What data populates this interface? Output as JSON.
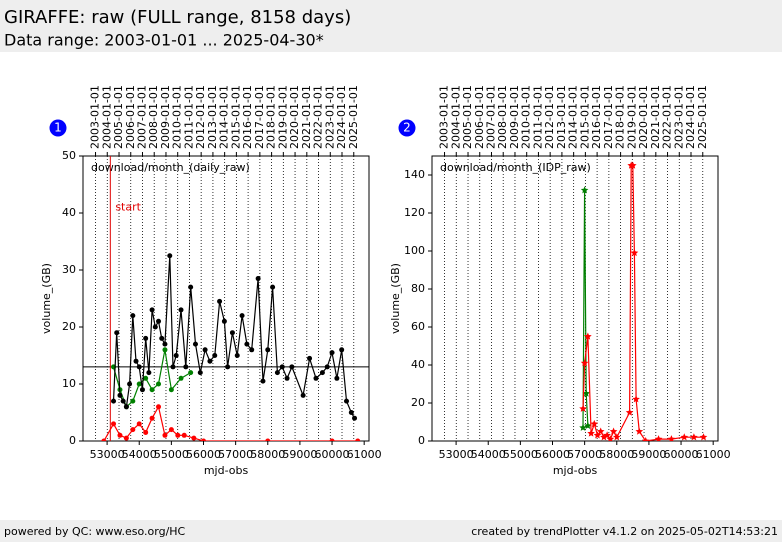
{
  "header": {
    "title": "GIRAFFE: raw (FULL range, 8158 days)",
    "subtitle": "Data range: 2003-01-01 ... 2025-04-30*"
  },
  "footer": {
    "left": "powered by QC: www.eso.org/HC",
    "right": "created by trendPlotter v4.1.2 on 2025-05-02T14:53:21"
  },
  "chart_data": [
    {
      "type": "line",
      "panel_label": "1",
      "title": "download/month_(daily_raw)",
      "xlabel": "mjd-obs",
      "ylabel": "volume_(GB)",
      "xlim": [
        52250,
        61150
      ],
      "ylim": [
        0,
        50
      ],
      "xticks": [
        53000,
        54000,
        55000,
        56000,
        57000,
        58000,
        59000,
        60000,
        61000
      ],
      "yticks": [
        0,
        10,
        20,
        30,
        40,
        50
      ],
      "x2ticks": [
        {
          "value": 52640,
          "label": "2003-01-01"
        },
        {
          "value": 53005,
          "label": "2004-01-01"
        },
        {
          "value": 53371,
          "label": "2005-01-01"
        },
        {
          "value": 53736,
          "label": "2006-01-01"
        },
        {
          "value": 54101,
          "label": "2007-01-01"
        },
        {
          "value": 54466,
          "label": "2008-01-01"
        },
        {
          "value": 54832,
          "label": "2009-01-01"
        },
        {
          "value": 55197,
          "label": "2010-01-01"
        },
        {
          "value": 55562,
          "label": "2011-01-01"
        },
        {
          "value": 55927,
          "label": "2012-01-01"
        },
        {
          "value": 56293,
          "label": "2013-01-01"
        },
        {
          "value": 56658,
          "label": "2014-01-01"
        },
        {
          "value": 57023,
          "label": "2015-01-01"
        },
        {
          "value": 57388,
          "label": "2016-01-01"
        },
        {
          "value": 57754,
          "label": "2017-01-01"
        },
        {
          "value": 58119,
          "label": "2018-01-01"
        },
        {
          "value": 58484,
          "label": "2019-01-01"
        },
        {
          "value": 58849,
          "label": "2020-01-01"
        },
        {
          "value": 59215,
          "label": "2021-01-01"
        },
        {
          "value": 59580,
          "label": "2022-01-01"
        },
        {
          "value": 59945,
          "label": "2023-01-01"
        },
        {
          "value": 60310,
          "label": "2024-01-01"
        },
        {
          "value": 60676,
          "label": "2025-01-01"
        }
      ],
      "grid": true,
      "hline": 13,
      "vline": {
        "x": 53100,
        "label": "start",
        "color": "#e00000"
      },
      "series": [
        {
          "color": "#008000",
          "marker": "o",
          "x": [
            53200,
            53400,
            53600,
            53800,
            54000,
            54200,
            54400,
            54600,
            54800,
            55000,
            55300,
            55600
          ],
          "values": [
            13,
            9,
            6,
            7,
            10,
            11,
            9,
            10,
            16,
            9,
            11,
            12
          ]
        },
        {
          "color": "#000000",
          "marker": "o",
          "x": [
            53200,
            53300,
            53400,
            53500,
            53600,
            53700,
            53800,
            53900,
            54000,
            54100,
            54200,
            54300,
            54400,
            54500,
            54600,
            54700,
            54800,
            54950,
            55050,
            55150,
            55300,
            55450,
            55600,
            55750,
            55900,
            56050,
            56200,
            56350,
            56500,
            56650,
            56750,
            56900,
            57050,
            57200,
            57350,
            57500,
            57700,
            57850,
            58000,
            58150,
            58300,
            58450,
            58600,
            58750,
            59100,
            59300,
            59500,
            59700,
            59850,
            60000,
            60150,
            60300,
            60450,
            60600,
            60700
          ],
          "values": [
            7,
            19,
            8,
            7,
            6,
            10,
            22,
            14,
            13,
            9,
            18,
            12,
            23,
            20,
            21,
            18,
            17,
            32.5,
            13,
            15,
            23,
            13,
            27,
            17,
            12,
            16,
            14,
            15,
            24.5,
            21,
            13,
            19,
            15,
            22,
            17,
            16,
            28.5,
            10.5,
            16,
            27,
            12,
            13,
            11,
            13,
            8,
            14.5,
            11,
            12,
            13,
            15.5,
            11,
            16,
            7,
            5,
            4
          ]
        },
        {
          "color": "#ff0000",
          "marker": "o",
          "x": [
            52900,
            53200,
            53400,
            53600,
            53800,
            54000,
            54200,
            54400,
            54600,
            54800,
            55000,
            55200,
            55400,
            55700,
            56000,
            58000,
            60000,
            60800
          ],
          "values": [
            0,
            3,
            1,
            0.5,
            2,
            3,
            1.5,
            4,
            6,
            1,
            2,
            1,
            1,
            0.5,
            0,
            0,
            0,
            0
          ]
        }
      ]
    },
    {
      "type": "line",
      "panel_label": "2",
      "title": "download/month_(IDP_raw)",
      "xlabel": "mjd-obs",
      "ylabel": "volume_(GB)",
      "xlim": [
        52250,
        61150
      ],
      "ylim": [
        0,
        150
      ],
      "xticks": [
        53000,
        54000,
        55000,
        56000,
        57000,
        58000,
        59000,
        60000,
        61000
      ],
      "yticks": [
        0,
        20,
        40,
        60,
        80,
        100,
        120,
        140
      ],
      "x2ticks": [
        {
          "value": 52640,
          "label": "2003-01-01"
        },
        {
          "value": 53005,
          "label": "2004-01-01"
        },
        {
          "value": 53371,
          "label": "2005-01-01"
        },
        {
          "value": 53736,
          "label": "2006-01-01"
        },
        {
          "value": 54101,
          "label": "2007-01-01"
        },
        {
          "value": 54466,
          "label": "2008-01-01"
        },
        {
          "value": 54832,
          "label": "2009-01-01"
        },
        {
          "value": 55197,
          "label": "2010-01-01"
        },
        {
          "value": 55562,
          "label": "2011-01-01"
        },
        {
          "value": 55927,
          "label": "2012-01-01"
        },
        {
          "value": 56293,
          "label": "2013-01-01"
        },
        {
          "value": 56658,
          "label": "2014-01-01"
        },
        {
          "value": 57023,
          "label": "2015-01-01"
        },
        {
          "value": 57388,
          "label": "2016-01-01"
        },
        {
          "value": 57754,
          "label": "2017-01-01"
        },
        {
          "value": 58119,
          "label": "2018-01-01"
        },
        {
          "value": 58484,
          "label": "2019-01-01"
        },
        {
          "value": 58849,
          "label": "2020-01-01"
        },
        {
          "value": 59215,
          "label": "2021-01-01"
        },
        {
          "value": 59580,
          "label": "2022-01-01"
        },
        {
          "value": 59945,
          "label": "2023-01-01"
        },
        {
          "value": 60310,
          "label": "2024-01-01"
        },
        {
          "value": 60676,
          "label": "2025-01-01"
        }
      ],
      "grid": true,
      "series": [
        {
          "color": "#008000",
          "marker": "*",
          "x": [
            56950,
            57000,
            57050,
            57100
          ],
          "values": [
            7,
            132,
            25,
            8
          ]
        },
        {
          "color": "#ff0000",
          "marker": "*",
          "x": [
            56950,
            57000,
            57100,
            57200,
            57300,
            57400,
            57500,
            57600,
            57700,
            57800,
            57900,
            58000,
            58400,
            58450,
            58500,
            58550,
            58600,
            58700,
            58900,
            59300,
            59700,
            60100,
            60400,
            60700
          ],
          "values": [
            17,
            41,
            55,
            4,
            9,
            3,
            5,
            2,
            3,
            1,
            5,
            2,
            15,
            145,
            145,
            99,
            22,
            5,
            0,
            1,
            1,
            2,
            2,
            2
          ]
        }
      ]
    }
  ]
}
